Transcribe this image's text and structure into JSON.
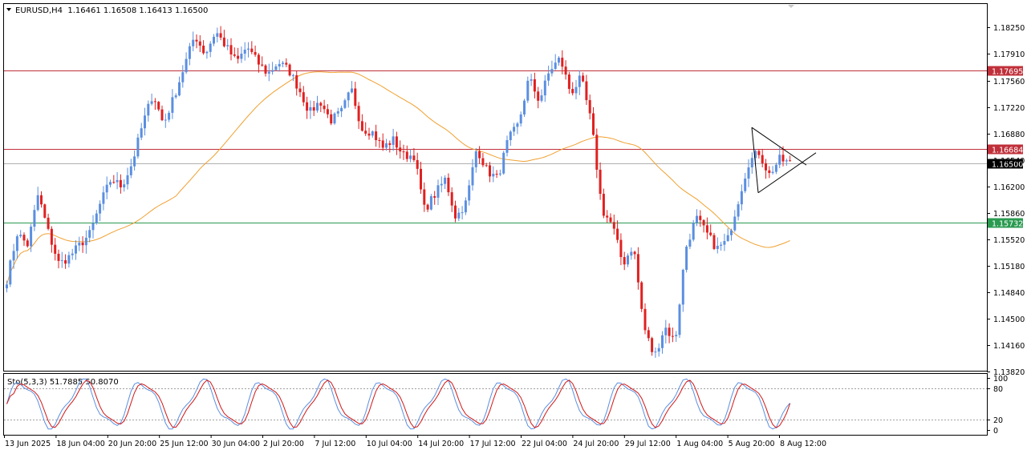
{
  "header": {
    "symbol_line": "EURUSD,H4  1.16461 1.16508 1.16413 1.16500"
  },
  "indicator": {
    "title": "Sto(5,3,3) 51.7885 50.8070"
  },
  "colors": {
    "bull": "#5b8fe0",
    "bear": "#e02020",
    "ma": "#f0a030",
    "stoch_main": "#5b8fe0",
    "stoch_signal": "#d01818",
    "res_line": "#c0303a",
    "sup_line": "#2a9a50",
    "cur_line": "#b0b0b0"
  },
  "chart_data": [
    {
      "type": "candlestick",
      "ylim": [
        1.1365,
        1.1855
      ],
      "y_ticks": [
        "1.18250",
        "1.17910",
        "1.17560",
        "1.17220",
        "1.16880",
        "1.16540",
        "1.16200",
        "1.15860",
        "1.15520",
        "1.15180",
        "1.14840",
        "1.14500",
        "1.14160",
        "1.13820"
      ],
      "x_ticks": [
        "13 Jun 2025",
        "18 Jun 04:00",
        "20 Jun 20:00",
        "25 Jun 12:00",
        "30 Jun 04:00",
        "2 Jul 20:00",
        "7 Jul 12:00",
        "10 Jul 04:00",
        "14 Jul 20:00",
        "17 Jul 12:00",
        "22 Jul 04:00",
        "24 Jul 20:00",
        "29 Jul 12:00",
        "1 Aug 04:00",
        "5 Aug 20:00",
        "8 Aug 12:00"
      ],
      "close_path": [
        1.15,
        1.156,
        1.1545,
        1.161,
        1.156,
        1.152,
        1.153,
        1.1545,
        1.156,
        1.16,
        1.163,
        1.162,
        1.165,
        1.17,
        1.174,
        1.17,
        1.1735,
        1.1775,
        1.1815,
        1.179,
        1.182,
        1.18,
        1.178,
        1.18,
        1.178,
        1.1765,
        1.178,
        1.177,
        1.1745,
        1.1715,
        1.173,
        1.1705,
        1.1715,
        1.1745,
        1.1695,
        1.169,
        1.167,
        1.168,
        1.166,
        1.166,
        1.159,
        1.161,
        1.163,
        1.158,
        1.16,
        1.167,
        1.164,
        1.163,
        1.168,
        1.17,
        1.176,
        1.173,
        1.177,
        1.1785,
        1.174,
        1.176,
        1.17,
        1.159,
        1.157,
        1.152,
        1.1545,
        1.144,
        1.14,
        1.144,
        1.142,
        1.154,
        1.158,
        1.156,
        1.154,
        1.155,
        1.16,
        1.165,
        1.1665,
        1.1635,
        1.1655,
        1.165
      ],
      "levels": [
        {
          "value": 1.17695,
          "label": "1.17695",
          "kind": "resistance"
        },
        {
          "value": 1.16684,
          "label": "1.16684",
          "kind": "resistance"
        },
        {
          "value": 1.165,
          "label": "1.16500",
          "kind": "current"
        },
        {
          "value": 1.15732,
          "label": "1.15732",
          "kind": "support"
        }
      ],
      "triangle": {
        "top": [
          1.1696,
          1.166
        ],
        "bottom": [
          1.1612,
          1.1648
        ]
      }
    },
    {
      "type": "line",
      "name": "Sto(5,3,3)",
      "ylim": [
        0,
        100
      ],
      "y_ticks": [
        "100",
        "80",
        "20",
        "0"
      ],
      "levels": [
        80,
        20
      ],
      "main_last": 51.7885,
      "signal_last": 50.807
    }
  ]
}
